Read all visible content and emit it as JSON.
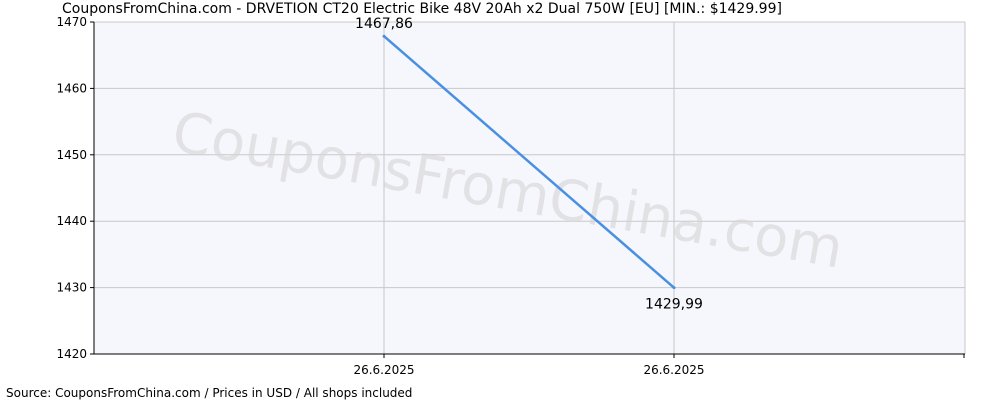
{
  "chart_data": {
    "type": "line",
    "title": "CouponsFromChina.com - DRVETION CT20 Electric Bike 48V 20Ah x2 Dual 750W [EU] [MIN.: $1429.99]",
    "source": "Source: CouponsFromChina.com / Prices in USD / All shops included",
    "watermark": "CouponsFromChina.com",
    "xlabel": "",
    "ylabel": "",
    "x_ticks": [
      "26.6.2025",
      "26.6.2025"
    ],
    "y_ticks": [
      1420,
      1430,
      1440,
      1450,
      1460,
      1470
    ],
    "ylim": [
      1420,
      1470
    ],
    "grid": true,
    "series": [
      {
        "values": [
          1467.86,
          1429.99
        ],
        "labels": [
          "1467,86",
          "1429,99"
        ],
        "color": "#4a90e2"
      }
    ]
  }
}
